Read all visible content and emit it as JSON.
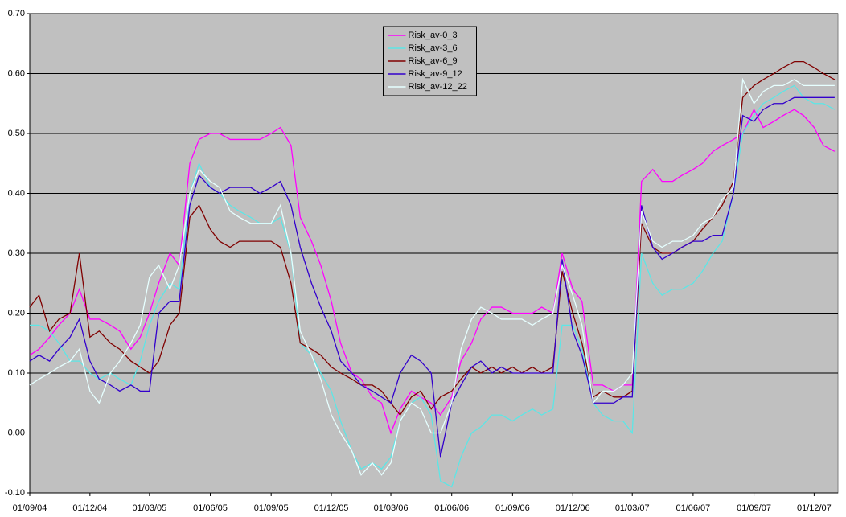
{
  "chart_data": {
    "type": "line",
    "x": [
      "01/09/04",
      "15/09/04",
      "01/10/04",
      "15/10/04",
      "01/11/04",
      "15/11/04",
      "01/12/04",
      "15/12/04",
      "01/01/05",
      "15/01/05",
      "01/02/05",
      "15/02/05",
      "01/03/05",
      "15/03/05",
      "01/04/05",
      "15/04/05",
      "01/05/05",
      "15/05/05",
      "01/06/05",
      "15/06/05",
      "01/07/05",
      "15/07/05",
      "01/08/05",
      "15/08/05",
      "01/09/05",
      "15/09/05",
      "01/10/05",
      "15/10/05",
      "01/11/05",
      "15/11/05",
      "01/12/05",
      "15/12/05",
      "01/01/06",
      "15/01/06",
      "01/02/06",
      "15/02/06",
      "01/03/06",
      "15/03/06",
      "01/04/06",
      "15/04/06",
      "01/05/06",
      "15/05/06",
      "01/06/06",
      "15/06/06",
      "01/07/06",
      "15/07/06",
      "01/08/06",
      "15/08/06",
      "01/09/06",
      "15/09/06",
      "01/10/06",
      "15/10/06",
      "01/11/06",
      "15/11/06",
      "01/12/06",
      "15/12/06",
      "01/01/07",
      "15/01/07",
      "01/02/07",
      "15/02/07",
      "01/03/07",
      "15/03/07",
      "01/04/07",
      "15/04/07",
      "01/05/07",
      "15/05/07",
      "01/06/07",
      "15/06/07",
      "01/07/07",
      "15/07/07",
      "01/08/07",
      "15/08/07",
      "01/09/07",
      "15/09/07",
      "01/10/07",
      "15/10/07",
      "01/11/07",
      "15/11/07",
      "01/12/07",
      "15/12/07",
      "01/01/08"
    ],
    "series": [
      {
        "name": "Risk_av-0_3",
        "color": "#ff00ff",
        "values": [
          0.13,
          0.14,
          0.16,
          0.18,
          0.2,
          0.24,
          0.19,
          0.19,
          0.18,
          0.17,
          0.14,
          0.16,
          0.2,
          0.25,
          0.3,
          0.28,
          0.45,
          0.49,
          0.5,
          0.5,
          0.49,
          0.49,
          0.49,
          0.49,
          0.5,
          0.51,
          0.48,
          0.36,
          0.32,
          0.28,
          0.22,
          0.15,
          0.1,
          0.09,
          0.06,
          0.05,
          0.0,
          0.04,
          0.07,
          0.06,
          0.05,
          0.03,
          0.06,
          0.12,
          0.15,
          0.19,
          0.21,
          0.21,
          0.2,
          0.2,
          0.2,
          0.21,
          0.2,
          0.3,
          0.24,
          0.22,
          0.08,
          0.08,
          0.07,
          0.08,
          0.08,
          0.42,
          0.44,
          0.42,
          0.42,
          0.43,
          0.44,
          0.45,
          0.47,
          0.48,
          0.49,
          0.5,
          0.54,
          0.51,
          0.52,
          0.53,
          0.54,
          0.53,
          0.51,
          0.48,
          0.47
        ]
      },
      {
        "name": "Risk_av-3_6",
        "color": "#5ce6e6",
        "values": [
          0.18,
          0.18,
          0.17,
          0.15,
          0.12,
          0.12,
          0.1,
          0.09,
          0.1,
          0.09,
          0.08,
          0.12,
          0.18,
          0.22,
          0.25,
          0.24,
          0.4,
          0.45,
          0.41,
          0.4,
          0.38,
          0.37,
          0.36,
          0.35,
          0.35,
          0.36,
          0.3,
          0.15,
          0.13,
          0.1,
          0.07,
          0.02,
          -0.03,
          -0.06,
          -0.05,
          -0.06,
          -0.04,
          0.02,
          0.05,
          0.06,
          0.03,
          -0.08,
          -0.09,
          -0.04,
          0.0,
          0.01,
          0.03,
          0.03,
          0.02,
          0.03,
          0.04,
          0.03,
          0.04,
          0.18,
          0.18,
          0.14,
          0.05,
          0.03,
          0.02,
          0.02,
          0.0,
          0.3,
          0.25,
          0.23,
          0.24,
          0.24,
          0.25,
          0.27,
          0.3,
          0.32,
          0.4,
          0.5,
          0.53,
          0.55,
          0.56,
          0.57,
          0.58,
          0.56,
          0.55,
          0.55,
          0.54
        ]
      },
      {
        "name": "Risk_av-6_9",
        "color": "#800000",
        "values": [
          0.21,
          0.23,
          0.17,
          0.19,
          0.2,
          0.3,
          0.16,
          0.17,
          0.15,
          0.14,
          0.12,
          0.11,
          0.1,
          0.12,
          0.18,
          0.2,
          0.36,
          0.38,
          0.34,
          0.32,
          0.31,
          0.32,
          0.32,
          0.32,
          0.32,
          0.31,
          0.25,
          0.15,
          0.14,
          0.13,
          0.11,
          0.1,
          0.09,
          0.08,
          0.08,
          0.07,
          0.05,
          0.03,
          0.06,
          0.07,
          0.04,
          0.06,
          0.07,
          0.09,
          0.11,
          0.1,
          0.11,
          0.1,
          0.11,
          0.1,
          0.11,
          0.1,
          0.11,
          0.27,
          0.2,
          0.15,
          0.06,
          0.07,
          0.06,
          0.06,
          0.07,
          0.35,
          0.31,
          0.3,
          0.3,
          0.31,
          0.32,
          0.34,
          0.36,
          0.38,
          0.42,
          0.56,
          0.58,
          0.59,
          0.6,
          0.61,
          0.62,
          0.62,
          0.61,
          0.6,
          0.59
        ]
      },
      {
        "name": "Risk_av-9_12",
        "color": "#3300cc",
        "values": [
          0.12,
          0.13,
          0.12,
          0.14,
          0.16,
          0.19,
          0.12,
          0.09,
          0.08,
          0.07,
          0.08,
          0.07,
          0.07,
          0.2,
          0.22,
          0.22,
          0.38,
          0.43,
          0.41,
          0.4,
          0.41,
          0.41,
          0.41,
          0.4,
          0.41,
          0.42,
          0.38,
          0.31,
          0.25,
          0.21,
          0.17,
          0.12,
          0.1,
          0.08,
          0.07,
          0.06,
          0.05,
          0.1,
          0.13,
          0.12,
          0.1,
          -0.04,
          0.05,
          0.08,
          0.11,
          0.12,
          0.1,
          0.11,
          0.1,
          0.1,
          0.1,
          0.1,
          0.1,
          0.29,
          0.17,
          0.13,
          0.05,
          0.05,
          0.05,
          0.06,
          0.06,
          0.38,
          0.31,
          0.29,
          0.3,
          0.31,
          0.32,
          0.32,
          0.33,
          0.33,
          0.4,
          0.53,
          0.52,
          0.54,
          0.55,
          0.55,
          0.56,
          0.56,
          0.56,
          0.56,
          0.56
        ]
      },
      {
        "name": "Risk_av-12_22",
        "color": "#e6ffff",
        "values": [
          0.08,
          0.09,
          0.1,
          0.11,
          0.12,
          0.14,
          0.07,
          0.05,
          0.1,
          0.12,
          0.15,
          0.18,
          0.26,
          0.28,
          0.24,
          0.28,
          0.4,
          0.44,
          0.42,
          0.41,
          0.37,
          0.36,
          0.35,
          0.35,
          0.35,
          0.38,
          0.3,
          0.17,
          0.13,
          0.09,
          0.03,
          0.0,
          -0.03,
          -0.07,
          -0.05,
          -0.07,
          -0.05,
          0.02,
          0.05,
          0.04,
          0.0,
          0.0,
          0.05,
          0.14,
          0.19,
          0.21,
          0.2,
          0.19,
          0.19,
          0.19,
          0.18,
          0.19,
          0.2,
          0.28,
          0.23,
          0.18,
          0.05,
          0.07,
          0.07,
          0.08,
          0.1,
          0.37,
          0.32,
          0.31,
          0.32,
          0.32,
          0.33,
          0.35,
          0.36,
          0.39,
          0.41,
          0.59,
          0.55,
          0.57,
          0.58,
          0.58,
          0.59,
          0.58,
          0.58,
          0.58,
          0.58
        ]
      }
    ],
    "xlim": [
      "01/09/04",
      "06/01/08"
    ],
    "xticks": [
      "01/09/04",
      "01/12/04",
      "01/03/05",
      "01/06/05",
      "01/09/05",
      "01/12/05",
      "01/03/06",
      "01/06/06",
      "01/09/06",
      "01/12/06",
      "01/03/07",
      "01/06/07",
      "01/09/07",
      "01/12/07"
    ],
    "ylim": [
      -0.1,
      0.7
    ],
    "yticks": [
      {
        "value": -0.1,
        "label": "-0.10"
      },
      {
        "value": 0,
        "label": "0.00"
      },
      {
        "value": 0.1,
        "label": "0.10"
      },
      {
        "value": 0.2,
        "label": "0.20"
      },
      {
        "value": 0.3,
        "label": "0.30"
      },
      {
        "value": 0.4,
        "label": "0.40"
      },
      {
        "value": 0.5,
        "label": "0.50"
      },
      {
        "value": 0.6,
        "label": "0.60"
      },
      {
        "value": 0.7,
        "label": "0.70"
      }
    ],
    "grid": true,
    "plot_background": "#c0c0c0",
    "legend_position": "top-center"
  }
}
